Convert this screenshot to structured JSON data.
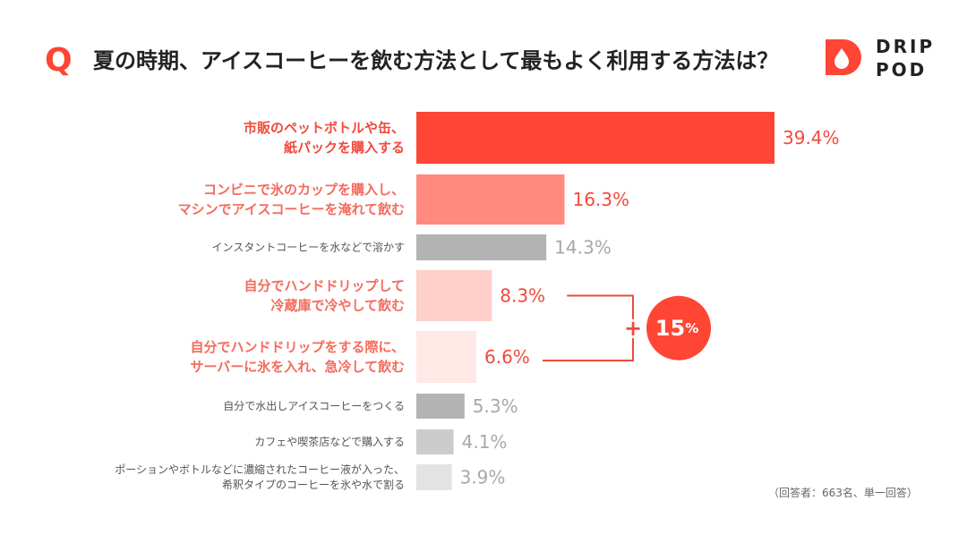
{
  "header": {
    "q_mark": "Q",
    "title": "夏の時期、アイスコーヒーを飲む方法として最もよく利用する方法は？"
  },
  "logo": {
    "line1": "DRIP",
    "line2": "POD"
  },
  "footnote": "（回答者：663名、単一回答）",
  "colors": {
    "accent": "#ff4533",
    "accent_text": "#f04a3c",
    "label_salmon": "#f46b5d",
    "label_gray": "#555555",
    "value_gray": "#a8a8a8"
  },
  "chart_data": {
    "type": "bar",
    "orientation": "horizontal",
    "unit": "%",
    "xlim": [
      0,
      39.4
    ],
    "categories": [
      [
        "市販のペットボトルや缶、",
        "紙パックを購入する"
      ],
      [
        "コンビニで氷のカップを購入し、",
        "マシンでアイスコーヒーを淹れて飲む"
      ],
      [
        "インスタントコーヒーを水などで溶かす"
      ],
      [
        "自分でハンドドリップして",
        "冷蔵庫で冷やして飲む"
      ],
      [
        "自分でハンドドリップをする際に、",
        "サーバーに氷を入れ、急冷して飲む"
      ],
      [
        "自分で水出しアイスコーヒーをつくる"
      ],
      [
        "カフェや喫茶店などで購入する"
      ],
      [
        "ポーションやボトルなどに濃縮されたコーヒー液が入った、",
        "希釈タイプのコーヒーを氷や水で割る"
      ]
    ],
    "values": [
      39.4,
      16.3,
      14.3,
      8.3,
      6.6,
      5.3,
      4.1,
      3.9
    ],
    "value_labels": [
      "39.4%",
      "16.3%",
      "14.3%",
      "8.3%",
      "6.6%",
      "5.3%",
      "4.1%",
      "3.9%"
    ],
    "bar_colors": [
      "#ff4533",
      "#ff8a7d",
      "#b3b3b3",
      "#ffcfca",
      "#ffe8e6",
      "#b3b3b3",
      "#cccccc",
      "#e3e3e3"
    ],
    "label_styles": [
      "accent",
      "salmon",
      "gray",
      "salmon",
      "salmon",
      "gray",
      "gray",
      "gray"
    ],
    "value_styles": [
      "accent",
      "accent",
      "gray",
      "accent",
      "accent",
      "gray",
      "gray",
      "gray"
    ],
    "annotation": {
      "plus": "+",
      "value": "15",
      "unit": "%",
      "bracket_rows": [
        3,
        4
      ]
    }
  }
}
